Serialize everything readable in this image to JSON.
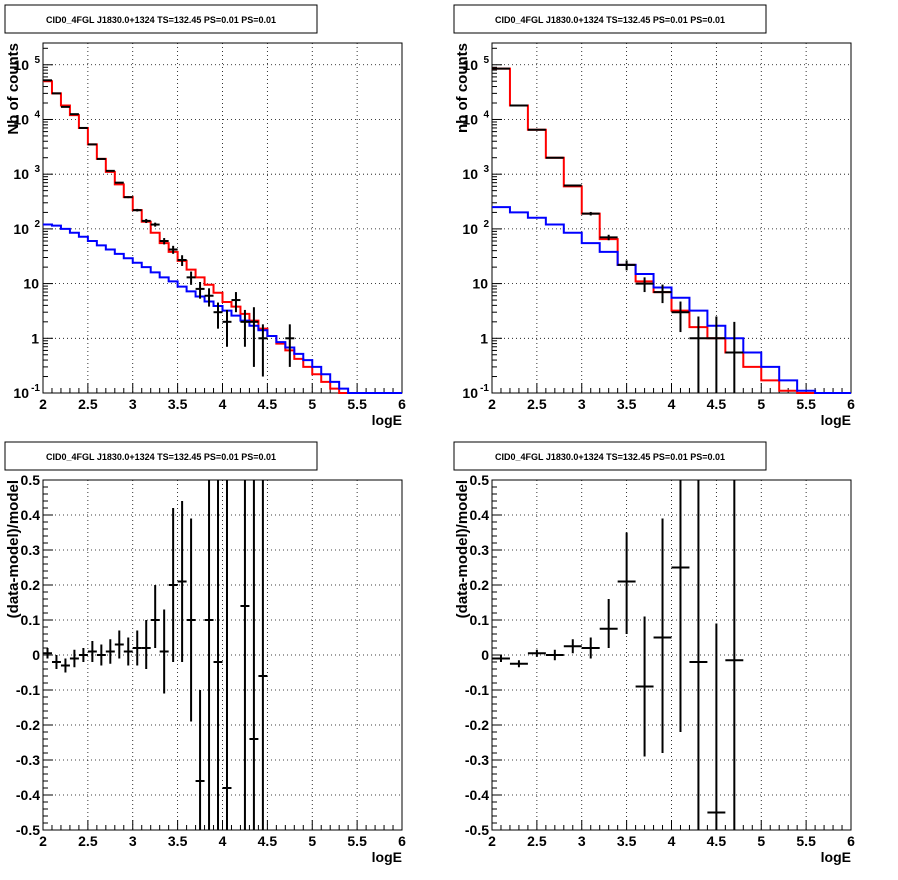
{
  "pads": [
    {
      "title": "CID0_4FGL J1830.0+1324 TS=132.45 PS=0.01 PS=0.01"
    },
    {
      "title": "CID0_4FGL J1830.0+1324 TS=132.45 PS=0.01 PS=0.01"
    },
    {
      "title": "CID0_4FGL J1830.0+1324 TS=132.45 PS=0.01 PS=0.01"
    },
    {
      "title": "CID0_4FGL J1830.0+1324 TS=132.45 PS=0.01 PS=0.01"
    }
  ],
  "chart_data": [
    {
      "type": "line",
      "title": "CID0_4FGL J1830.0+1324 TS=132.45 PS=0.01 PS=0.01",
      "xlabel": "logE",
      "ylabel": "Nb of counts",
      "xlim": [
        2,
        6
      ],
      "ylim": [
        0.1,
        250000
      ],
      "log_y": true,
      "grid": true,
      "x_ticks": [
        "2",
        "2.5",
        "3",
        "3.5",
        "4",
        "4.5",
        "5",
        "5.5",
        "6"
      ],
      "y_ticks": [
        "10^-1",
        "1",
        "10",
        "10^2",
        "10^3",
        "10^4",
        "10^5"
      ],
      "bin_width": 0.1,
      "series": [
        {
          "style": "red-histogram",
          "color": "#ff0000",
          "bin_start": [
            2.0,
            2.1,
            2.2,
            2.3,
            2.4,
            2.5,
            2.6,
            2.7,
            2.8,
            2.9,
            3.0,
            3.1,
            3.2,
            3.3,
            3.4,
            3.5,
            3.6,
            3.7,
            3.8,
            3.9,
            4.0,
            4.1,
            4.2,
            4.3,
            4.4,
            4.5,
            4.6,
            4.7,
            4.8,
            4.9,
            5.0,
            5.1,
            5.2,
            5.3,
            5.4,
            5.5,
            5.6,
            5.7,
            5.8,
            5.9
          ],
          "values": [
            50000,
            30000,
            18000,
            12000,
            7000,
            3500,
            1900,
            1100,
            650,
            380,
            220,
            135,
            85,
            55,
            38,
            26,
            18,
            13,
            9.5,
            6.8,
            4.6,
            3.8,
            2.8,
            2.1,
            1.5,
            1.1,
            0.8,
            0.6,
            0.42,
            0.3,
            0.22,
            0.16,
            0.12,
            0.1,
            0.1,
            0.1,
            0.1,
            0.1,
            0.1,
            0.1
          ]
        },
        {
          "style": "blue-histogram",
          "color": "#0000ff",
          "bin_start": [
            2.0,
            2.1,
            2.2,
            2.3,
            2.4,
            2.5,
            2.6,
            2.7,
            2.8,
            2.9,
            3.0,
            3.1,
            3.2,
            3.3,
            3.4,
            3.5,
            3.6,
            3.7,
            3.8,
            3.9,
            4.0,
            4.1,
            4.2,
            4.3,
            4.4,
            4.5,
            4.6,
            4.7,
            4.8,
            4.9,
            5.0,
            5.1,
            5.2,
            5.3,
            5.4,
            5.5,
            5.6,
            5.7,
            5.8,
            5.9
          ],
          "values": [
            120,
            115,
            100,
            85,
            72,
            60,
            50,
            42,
            35,
            29,
            24,
            20,
            16,
            13,
            11,
            8.8,
            7.2,
            5.8,
            4.7,
            3.9,
            3.2,
            2.6,
            2.1,
            1.7,
            1.4,
            1.1,
            0.85,
            0.68,
            0.52,
            0.4,
            0.3,
            0.22,
            0.16,
            0.12,
            0.1,
            0.1,
            0.1,
            0.1,
            0.1,
            0.1
          ]
        },
        {
          "style": "data-points",
          "color": "#000000",
          "x": [
            2.05,
            2.15,
            2.25,
            2.35,
            2.45,
            2.55,
            2.65,
            2.75,
            2.85,
            2.95,
            3.05,
            3.15,
            3.25,
            3.35,
            3.45,
            3.55,
            3.65,
            3.75,
            3.85,
            3.95,
            4.05,
            4.15,
            4.25,
            4.35,
            4.45,
            4.75
          ],
          "y": [
            52000,
            30000,
            17000,
            12500,
            7000,
            3500,
            1900,
            1150,
            700,
            380,
            220,
            140,
            120,
            60,
            42,
            27,
            13,
            8,
            6,
            3,
            2,
            5,
            2,
            2,
            1,
            1
          ],
          "ylo": [
            51500,
            29700,
            16800,
            12300,
            6900,
            3440,
            1860,
            1120,
            680,
            365,
            208,
            128,
            110,
            52,
            35,
            21,
            9.5,
            5.3,
            3.8,
            1.5,
            0.7,
            3,
            0.7,
            0.3,
            0.2,
            0.3
          ],
          "yhi": [
            52500,
            30300,
            17200,
            12700,
            7100,
            3560,
            1940,
            1180,
            720,
            395,
            232,
            152,
            130,
            68,
            49,
            33,
            16.6,
            10.7,
            8.2,
            4.5,
            3.3,
            7,
            3.3,
            3.7,
            1.8,
            1.8
          ]
        }
      ]
    },
    {
      "type": "line",
      "title": "CID0_4FGL J1830.0+1324 TS=132.45 PS=0.01 PS=0.01",
      "xlabel": "logE",
      "ylabel": "nb of counts",
      "xlim": [
        2,
        6
      ],
      "ylim": [
        0.1,
        250000
      ],
      "log_y": true,
      "grid": true,
      "x_ticks": [
        "2",
        "2.5",
        "3",
        "3.5",
        "4",
        "4.5",
        "5",
        "5.5",
        "6"
      ],
      "y_ticks": [
        "10^-1",
        "1",
        "10",
        "10^2",
        "10^3",
        "10^4",
        "10^5"
      ],
      "bin_width": 0.2,
      "series": [
        {
          "style": "red-histogram",
          "color": "#ff0000",
          "bin_start": [
            2.0,
            2.2,
            2.4,
            2.6,
            2.8,
            3.0,
            3.2,
            3.4,
            3.6,
            3.8,
            4.0,
            4.2,
            4.4,
            4.6,
            4.8,
            5.0,
            5.2,
            5.4,
            5.6,
            5.8
          ],
          "values": [
            85000,
            18000,
            6500,
            2000,
            600,
            190,
            65,
            22,
            11,
            7,
            3.2,
            1.6,
            1,
            0.55,
            0.3,
            0.17,
            0.11,
            0.1,
            0.1,
            0.1
          ]
        },
        {
          "style": "blue-histogram",
          "color": "#0000ff",
          "bin_start": [
            2.0,
            2.2,
            2.4,
            2.6,
            2.8,
            3.0,
            3.2,
            3.4,
            3.6,
            3.8,
            4.0,
            4.2,
            4.4,
            4.6,
            4.8,
            5.0,
            5.2,
            5.4,
            5.6,
            5.8
          ],
          "values": [
            250,
            200,
            160,
            120,
            85,
            55,
            38,
            22,
            15,
            8.5,
            5.5,
            3.2,
            1.7,
            1,
            0.55,
            0.3,
            0.17,
            0.11,
            0.1,
            0.1
          ]
        },
        {
          "style": "data-points",
          "color": "#000000",
          "x": [
            2.1,
            2.3,
            2.5,
            2.7,
            2.9,
            3.1,
            3.3,
            3.5,
            3.7,
            3.9,
            4.1,
            4.3,
            4.5,
            4.7
          ],
          "y": [
            85000,
            18000,
            6500,
            2000,
            620,
            190,
            70,
            22,
            10,
            7,
            3,
            1,
            1,
            0.55
          ],
          "ylo": [
            84700,
            17860,
            6420,
            1955,
            595,
            176,
            62,
            17.5,
            7,
            4.4,
            1.3,
            0.1,
            0.1,
            0.1
          ],
          "yhi": [
            85300,
            18140,
            6580,
            2045,
            645,
            204,
            78,
            26.5,
            13,
            9.6,
            4.7,
            2.5,
            2.5,
            2
          ]
        }
      ]
    },
    {
      "type": "scatter",
      "title": "CID0_4FGL J1830.0+1324 TS=132.45 PS=0.01 PS=0.01",
      "xlabel": "logE",
      "ylabel": "(data-model)/model",
      "xlim": [
        2,
        6
      ],
      "ylim": [
        -0.5,
        0.5
      ],
      "grid": true,
      "x_ticks": [
        "2",
        "2.5",
        "3",
        "3.5",
        "4",
        "4.5",
        "5",
        "5.5",
        "6"
      ],
      "y_ticks": [
        "-0.5",
        "-0.4",
        "-0.3",
        "-0.2",
        "-0.1",
        "0",
        "0.1",
        "0.2",
        "0.3",
        "0.4",
        "0.5"
      ],
      "x_err": 0.05,
      "points": {
        "x": [
          2.05,
          2.15,
          2.25,
          2.35,
          2.45,
          2.55,
          2.65,
          2.75,
          2.85,
          2.95,
          3.05,
          3.15,
          3.25,
          3.35,
          3.45,
          3.55,
          3.65,
          3.75,
          3.85,
          3.95,
          4.05,
          4.25,
          4.35,
          4.45
        ],
        "y": [
          0.005,
          -0.02,
          -0.03,
          -0.01,
          0.0,
          0.01,
          0.0,
          0.01,
          0.03,
          0.01,
          0.02,
          0.02,
          0.1,
          0.01,
          0.2,
          0.21,
          0.1,
          -0.36,
          0.1,
          -0.02,
          -0.38,
          0.14,
          -0.24,
          -0.06
        ],
        "ylo": [
          -0.01,
          -0.04,
          -0.05,
          -0.035,
          -0.02,
          -0.02,
          -0.03,
          -0.025,
          -0.01,
          -0.03,
          -0.03,
          -0.04,
          0.02,
          -0.11,
          -0.02,
          -0.02,
          -0.19,
          -0.5,
          -0.5,
          -0.5,
          -0.5,
          -0.5,
          -0.5,
          -0.5
        ],
        "yhi": [
          0.02,
          0.0,
          -0.01,
          0.015,
          0.02,
          0.04,
          0.03,
          0.045,
          0.07,
          0.05,
          0.07,
          0.1,
          0.2,
          0.13,
          0.42,
          0.44,
          0.39,
          -0.1,
          0.5,
          0.5,
          0.5,
          0.5,
          0.5,
          0.5
        ]
      }
    },
    {
      "type": "scatter",
      "title": "CID0_4FGL J1830.0+1324 TS=132.45 PS=0.01 PS=0.01",
      "xlabel": "logE",
      "ylabel": "(data-model)/model",
      "xlim": [
        2,
        6
      ],
      "ylim": [
        -0.5,
        0.5
      ],
      "grid": true,
      "x_ticks": [
        "2",
        "2.5",
        "3",
        "3.5",
        "4",
        "4.5",
        "5",
        "5.5",
        "6"
      ],
      "y_ticks": [
        "-0.5",
        "-0.4",
        "-0.3",
        "-0.2",
        "-0.1",
        "0",
        "0.1",
        "0.2",
        "0.3",
        "0.4",
        "0.5"
      ],
      "x_err": 0.1,
      "points": {
        "x": [
          2.1,
          2.3,
          2.5,
          2.7,
          2.9,
          3.1,
          3.3,
          3.5,
          3.7,
          3.9,
          4.1,
          4.3,
          4.5,
          4.7
        ],
        "y": [
          -0.01,
          -0.025,
          0.005,
          0.0,
          0.025,
          0.02,
          0.075,
          0.21,
          -0.09,
          0.05,
          0.25,
          -0.02,
          -0.45,
          -0.015
        ],
        "ylo": [
          -0.02,
          -0.035,
          -0.005,
          -0.015,
          0.005,
          -0.01,
          0.02,
          0.06,
          -0.29,
          -0.28,
          -0.22,
          -0.5,
          -0.5,
          -0.5
        ],
        "yhi": [
          0.0,
          -0.015,
          0.015,
          0.015,
          0.045,
          0.05,
          0.16,
          0.35,
          0.11,
          0.39,
          0.5,
          0.5,
          0.09,
          0.5
        ]
      }
    }
  ]
}
